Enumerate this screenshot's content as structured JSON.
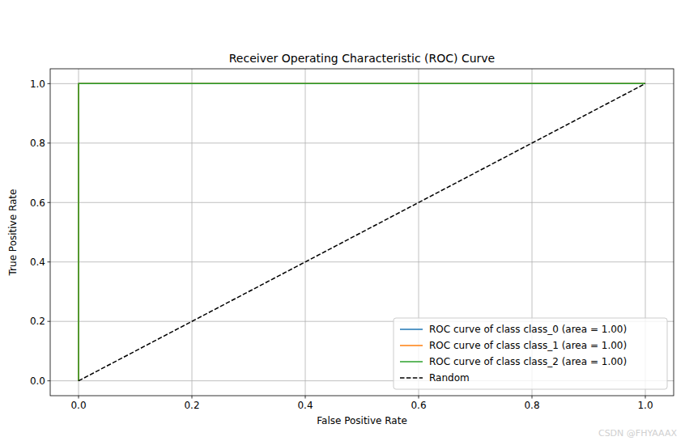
{
  "chart_data": {
    "type": "line",
    "title": "Receiver Operating Characteristic (ROC) Curve",
    "x_label": "False Positive Rate",
    "y_label": "True Positive Rate",
    "xlim": [
      -0.05,
      1.05
    ],
    "ylim": [
      -0.05,
      1.05
    ],
    "xticks": [
      {
        "value": 0,
        "label": "0.0"
      },
      0.2,
      0.4,
      0.6,
      0.8,
      {
        "value": 1,
        "label": "1.0"
      }
    ],
    "yticks": [
      {
        "value": 0,
        "label": "0.0"
      },
      0.2,
      0.4,
      0.6,
      0.8,
      {
        "value": 1,
        "label": "1.0"
      }
    ],
    "grid": true,
    "legend": "lower right",
    "series": [
      {
        "name": "ROC curve of class class_0 (area = 1.00)",
        "color": "#1f77b4",
        "line_style": "solid",
        "x": [
          0,
          0,
          1
        ],
        "values": [
          0,
          1,
          1
        ]
      },
      {
        "name": "ROC curve of class class_1 (area = 1.00)",
        "color": "#ff7f0e",
        "line_style": "solid",
        "x": [
          0,
          0,
          1
        ],
        "values": [
          0,
          1,
          1
        ]
      },
      {
        "name": "ROC curve of class class_2 (area = 1.00)",
        "color": "#2ca02c",
        "line_style": "solid",
        "x": [
          0,
          0,
          1
        ],
        "values": [
          0,
          1,
          1
        ]
      },
      {
        "name": "Random",
        "color": "#000000",
        "line_style": "dashed",
        "x": [
          0,
          1
        ],
        "values": [
          0,
          1
        ]
      }
    ],
    "annotations": [
      "CSDN @FHYAAAX"
    ]
  }
}
